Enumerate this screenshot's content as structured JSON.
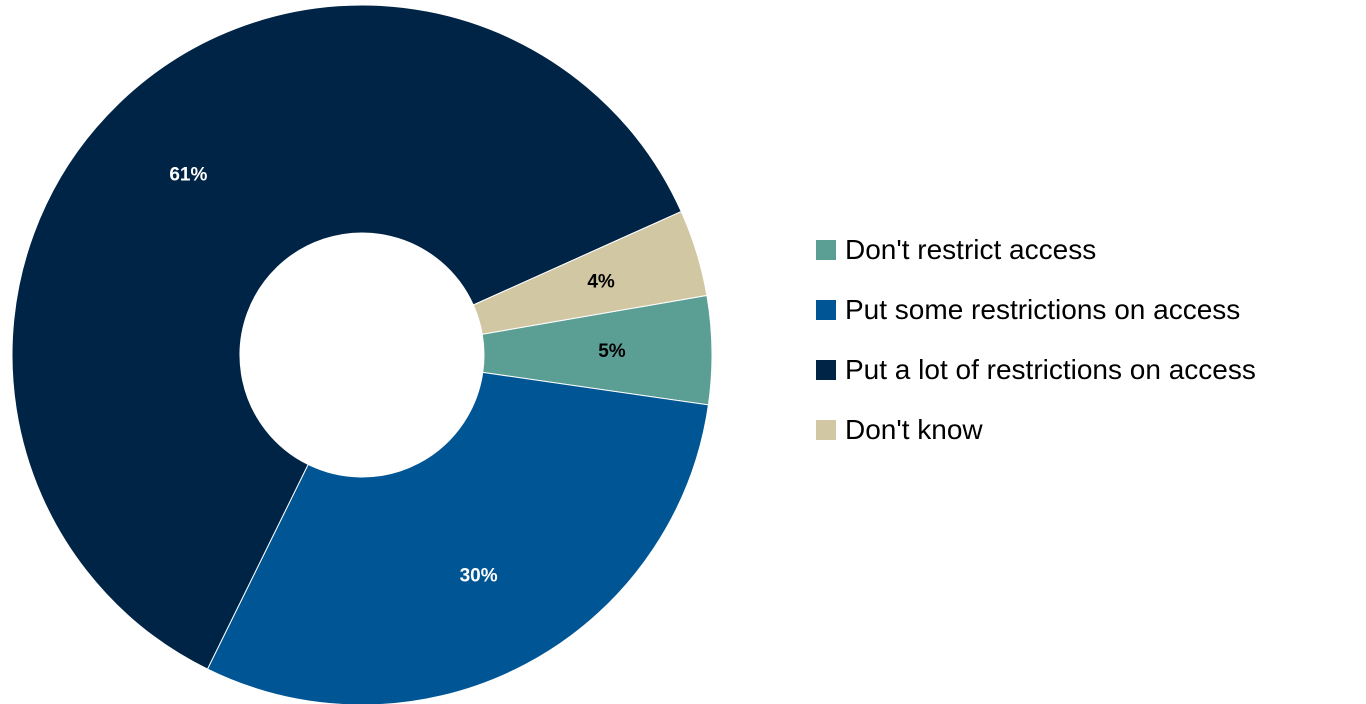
{
  "chart_data": {
    "type": "pie",
    "donut": true,
    "categories": [
      "Don't restrict access",
      "Put some restrictions on access",
      "Put a lot of restrictions on access",
      "Don't know"
    ],
    "values": [
      5,
      30,
      61,
      4
    ],
    "data_labels": [
      "5%",
      "30%",
      "61%",
      "4%"
    ],
    "colors": [
      "#5b9f94",
      "#005594",
      "#002446",
      "#d1c8a3"
    ],
    "label_colors": [
      "#000000",
      "#ffffff",
      "#ffffff",
      "#000000"
    ],
    "legend_position": "right",
    "title": ""
  }
}
